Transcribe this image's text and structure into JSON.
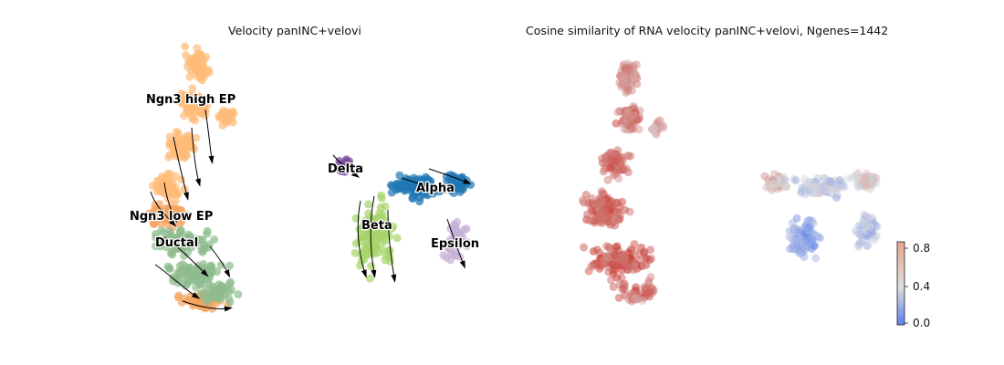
{
  "panels": [
    {
      "title": "Velocity panINC+velovi"
    },
    {
      "title": "Cosine similarity of RNA velocity panINC+velovi, Ngenes=1442"
    }
  ],
  "chart_data": [
    {
      "type": "scatter",
      "title": "Velocity panINC+velovi",
      "xlabel": "",
      "ylabel": "",
      "axes": "off",
      "overlay": "velocity streamlines with arrows",
      "clusters": [
        {
          "name": "Ngn3 high EP",
          "color": "#ffbb78"
        },
        {
          "name": "Ngn3 low EP",
          "color": "#f4a460"
        },
        {
          "name": "Ductal",
          "color": "#8fbc8f"
        },
        {
          "name": "Delta",
          "color": "#7b4ea0"
        },
        {
          "name": "Alpha",
          "color": "#1f77b4"
        },
        {
          "name": "Beta",
          "color": "#a6d46a"
        },
        {
          "name": "Epsilon",
          "color": "#c5b0d5"
        }
      ]
    },
    {
      "type": "scatter",
      "title": "Cosine similarity of RNA velocity panINC+velovi, Ngenes=1442",
      "xlabel": "",
      "ylabel": "",
      "axes": "off",
      "colormap": "coolwarm",
      "colorbar": {
        "range": [
          0.0,
          0.9
        ],
        "ticks": [
          "0.0",
          "0.4",
          "0.8"
        ]
      },
      "regions": [
        {
          "region": "left trunk (progenitors)",
          "cosine_similarity_approx": 0.85
        },
        {
          "region": "endocrine arms",
          "cosine_similarity_approx": 0.35
        }
      ]
    }
  ],
  "colors": {
    "Ngn3 high EP": "#ffbb78",
    "Ngn3 low EP": "#f4a460",
    "Ductal": "#8fbc8f",
    "Delta": "#7b4ea0",
    "Alpha": "#1f77b4",
    "Beta": "#a6d46a",
    "Epsilon": "#c5b0d5",
    "cool": "#5a7ff0",
    "mid": "#dcdcdc",
    "warm": "#c8342c"
  }
}
